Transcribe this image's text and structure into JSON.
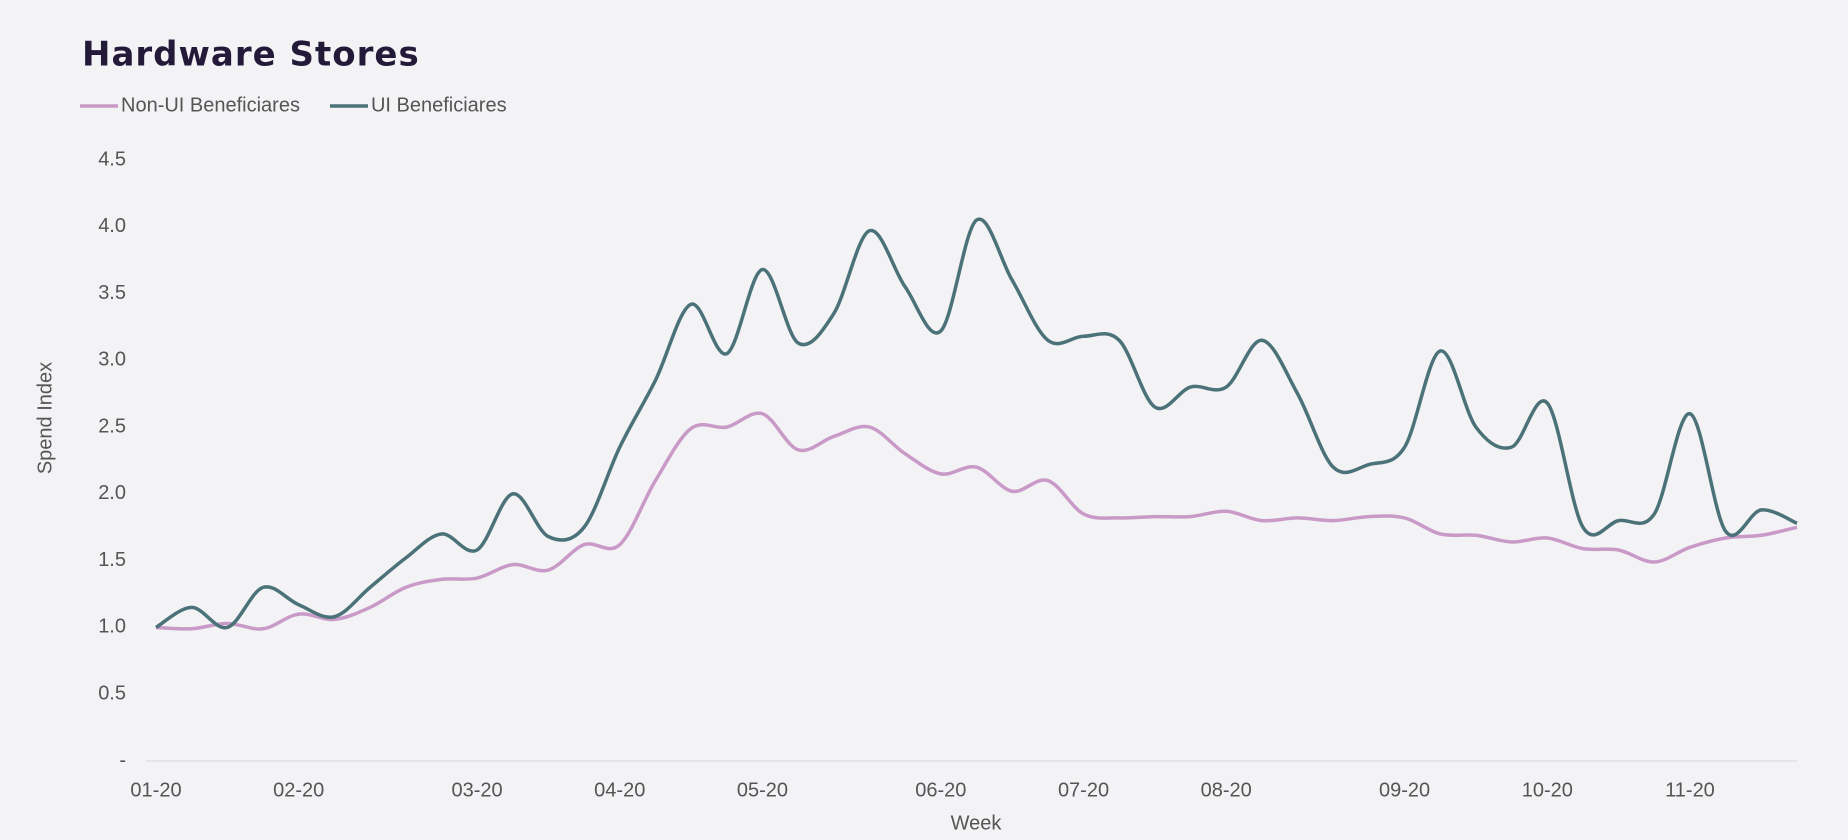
{
  "chart_data": {
    "type": "line",
    "title": "Hardware Stores",
    "x_label": "Week",
    "y_label": "Spend Index",
    "categories": [
      "01-20",
      null,
      null,
      null,
      "02-20",
      null,
      null,
      null,
      null,
      "03-20",
      null,
      null,
      null,
      "04-20",
      null,
      null,
      null,
      "05-20",
      null,
      null,
      null,
      null,
      "06-20",
      null,
      null,
      null,
      "07-20",
      null,
      null,
      null,
      "08-20",
      null,
      null,
      null,
      null,
      "09-20",
      null,
      null,
      null,
      "10-20",
      null,
      null,
      null,
      "11-20",
      null,
      null,
      null
    ],
    "series": [
      {
        "name": "Non-UI Beneficiares",
        "color": "#c99ac8",
        "values": [
          1.0,
          0.99,
          1.03,
          0.99,
          1.1,
          1.06,
          1.15,
          1.3,
          1.36,
          1.37,
          1.47,
          1.43,
          1.62,
          1.62,
          2.1,
          2.49,
          2.5,
          2.6,
          2.33,
          2.43,
          2.5,
          2.3,
          2.15,
          2.2,
          2.02,
          2.1,
          1.85,
          1.82,
          1.83,
          1.83,
          1.87,
          1.8,
          1.82,
          1.8,
          1.83,
          1.82,
          1.7,
          1.69,
          1.64,
          1.67,
          1.59,
          1.58,
          1.49,
          1.6,
          1.67,
          1.69,
          1.75
        ]
      },
      {
        "name": "UI Beneficiares",
        "color": "#4a7278",
        "values": [
          1.0,
          1.15,
          1.0,
          1.3,
          1.17,
          1.08,
          1.3,
          1.52,
          1.7,
          1.58,
          2.0,
          1.68,
          1.75,
          2.35,
          2.85,
          3.42,
          3.05,
          3.68,
          3.13,
          3.35,
          3.97,
          3.55,
          3.22,
          4.05,
          3.6,
          3.15,
          3.18,
          3.15,
          2.65,
          2.8,
          2.8,
          3.15,
          2.75,
          2.2,
          2.22,
          2.35,
          3.07,
          2.5,
          2.35,
          2.68,
          1.75,
          1.8,
          1.85,
          2.6,
          1.72,
          1.88,
          1.78
        ]
      }
    ],
    "ylim": [
      0,
      4.5
    ],
    "yticks": [
      {
        "value": 0,
        "label": "-"
      },
      0.5,
      {
        "value": 1,
        "label": "1.0"
      },
      1.5,
      {
        "value": 2,
        "label": "2.0"
      },
      2.5,
      {
        "value": 3,
        "label": "3.0"
      },
      3.5,
      {
        "value": 4,
        "label": "4.0"
      },
      4.5
    ],
    "grid": false,
    "legend": "top-left"
  }
}
